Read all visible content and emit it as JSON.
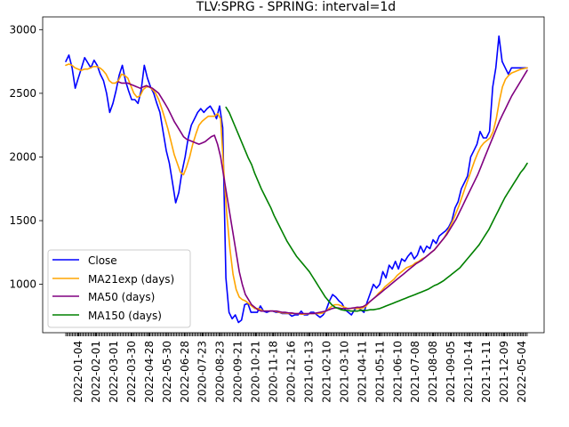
{
  "chart_data": {
    "type": "line",
    "title": "TLV:SPRG - SPRING: interval=1d",
    "xlabel": "",
    "ylabel": "",
    "ylim": [
      620,
      3100
    ],
    "yticks": [
      1000,
      1500,
      2000,
      2500,
      3000
    ],
    "grid": false,
    "legend_placement": "lower-left",
    "xticks": [
      "2022-01-04",
      "2022-02-01",
      "2022-03-01",
      "2022-03-30",
      "2022-04-28",
      "2022-05-30",
      "2022-06-28",
      "2020-07-23",
      "2020-08-23",
      "2020-09-21",
      "2020-10-21",
      "2020-11-18",
      "2020-12-16",
      "2021-01-13",
      "2021-02-10",
      "2021-03-10",
      "2021-04-11",
      "2021-05-11",
      "2021-06-10",
      "2021-07-08",
      "2021-08-08",
      "2021-09-05",
      "2021-10-14",
      "2021-11-11",
      "2021-12-09",
      "2022-05-04"
    ],
    "series": [
      {
        "name": "Close",
        "color": "#0000ff",
        "values": [
          2750,
          2800,
          2700,
          2540,
          2620,
          2700,
          2780,
          2740,
          2700,
          2760,
          2720,
          2650,
          2600,
          2500,
          2350,
          2420,
          2520,
          2640,
          2720,
          2600,
          2520,
          2450,
          2450,
          2420,
          2520,
          2720,
          2620,
          2550,
          2500,
          2420,
          2350,
          2200,
          2050,
          1950,
          1800,
          1640,
          1720,
          1880,
          2000,
          2150,
          2250,
          2300,
          2350,
          2380,
          2350,
          2380,
          2400,
          2360,
          2300,
          2400,
          2230,
          1050,
          780,
          730,
          760,
          700,
          720,
          840,
          850,
          780,
          780,
          780,
          830,
          790,
          780,
          790,
          790,
          780,
          780,
          770,
          770,
          770,
          750,
          760,
          760,
          790,
          760,
          760,
          780,
          780,
          760,
          740,
          760,
          800,
          870,
          920,
          900,
          870,
          850,
          800,
          780,
          760,
          800,
          820,
          800,
          780,
          860,
          930,
          1000,
          970,
          1000,
          1100,
          1050,
          1150,
          1120,
          1180,
          1120,
          1200,
          1180,
          1220,
          1250,
          1200,
          1230,
          1300,
          1250,
          1300,
          1280,
          1350,
          1320,
          1380,
          1400,
          1420,
          1450,
          1500,
          1600,
          1650,
          1750,
          1800,
          1850,
          2000,
          2050,
          2100,
          2200,
          2150,
          2150,
          2200,
          2550,
          2700,
          2950,
          2750,
          2700,
          2650,
          2700,
          2700,
          2700,
          2700,
          2700,
          2700
        ]
      },
      {
        "name": "MA21exp (days)",
        "color": "#ffa500",
        "values": [
          2720,
          2730,
          2720,
          2700,
          2690,
          2680,
          2690,
          2690,
          2700,
          2710,
          2710,
          2700,
          2680,
          2650,
          2600,
          2580,
          2580,
          2600,
          2650,
          2640,
          2620,
          2560,
          2500,
          2470,
          2480,
          2530,
          2550,
          2550,
          2530,
          2500,
          2450,
          2380,
          2300,
          2220,
          2120,
          2020,
          1950,
          1880,
          1860,
          1920,
          2000,
          2100,
          2180,
          2250,
          2280,
          2300,
          2320,
          2320,
          2320,
          2340,
          2300,
          1900,
          1550,
          1280,
          1080,
          960,
          900,
          880,
          870,
          850,
          830,
          810,
          810,
          800,
          790,
          790,
          790,
          790,
          785,
          780,
          775,
          775,
          770,
          770,
          770,
          770,
          765,
          765,
          768,
          770,
          770,
          770,
          770,
          775,
          790,
          810,
          830,
          840,
          840,
          830,
          820,
          810,
          810,
          812,
          810,
          810,
          815,
          830,
          860,
          880,
          900,
          930,
          950,
          980,
          1000,
          1020,
          1040,
          1070,
          1090,
          1110,
          1130,
          1140,
          1150,
          1170,
          1180,
          1200,
          1210,
          1230,
          1250,
          1270,
          1300,
          1330,
          1360,
          1400,
          1450,
          1500,
          1560,
          1620,
          1690,
          1760,
          1830,
          1900,
          1970,
          2030,
          2080,
          2110,
          2130,
          2150,
          2200,
          2300,
          2440,
          2550,
          2610,
          2640,
          2660,
          2670,
          2680,
          2690,
          2695,
          2700
        ]
      },
      {
        "name": "MA50 (days)",
        "color": "#800080",
        "values": [
          null,
          null,
          null,
          null,
          null,
          null,
          null,
          null,
          null,
          null,
          null,
          null,
          null,
          null,
          null,
          null,
          null,
          2590,
          2580,
          2580,
          2580,
          2570,
          2560,
          2550,
          2540,
          2550,
          2560,
          2550,
          2540,
          2520,
          2500,
          2460,
          2420,
          2380,
          2330,
          2280,
          2240,
          2200,
          2160,
          2140,
          2130,
          2120,
          2110,
          2100,
          2110,
          2120,
          2140,
          2160,
          2170,
          2100,
          2000,
          1850,
          1700,
          1550,
          1400,
          1250,
          1100,
          1000,
          920,
          880,
          840,
          820,
          800,
          790,
          790,
          790,
          790,
          790,
          790,
          785,
          780,
          780,
          775,
          775,
          770,
          770,
          770,
          770,
          770,
          770,
          770,
          775,
          780,
          785,
          790,
          800,
          810,
          815,
          815,
          810,
          810,
          810,
          812,
          815,
          820,
          820,
          825,
          840,
          860,
          880,
          900,
          920,
          940,
          960,
          980,
          1000,
          1020,
          1040,
          1060,
          1080,
          1100,
          1120,
          1140,
          1160,
          1175,
          1190,
          1210,
          1230,
          1250,
          1270,
          1300,
          1330,
          1360,
          1390,
          1430,
          1470,
          1510,
          1560,
          1610,
          1660,
          1710,
          1760,
          1810,
          1860,
          1920,
          1980,
          2040,
          2100,
          2160,
          2220,
          2280,
          2330,
          2380,
          2430,
          2480,
          2520,
          2560,
          2600,
          2640,
          2680
        ]
      },
      {
        "name": "MA150 (days)",
        "color": "#008000",
        "values": [
          null,
          null,
          null,
          null,
          null,
          null,
          null,
          null,
          null,
          null,
          null,
          null,
          null,
          null,
          null,
          null,
          null,
          null,
          null,
          null,
          null,
          null,
          null,
          null,
          null,
          null,
          null,
          null,
          null,
          null,
          null,
          null,
          null,
          null,
          null,
          null,
          null,
          null,
          null,
          null,
          null,
          null,
          null,
          null,
          null,
          null,
          null,
          null,
          null,
          null,
          2390,
          2350,
          2290,
          2230,
          2170,
          2110,
          2050,
          1990,
          1940,
          1870,
          1810,
          1750,
          1700,
          1650,
          1600,
          1540,
          1490,
          1440,
          1390,
          1340,
          1300,
          1260,
          1220,
          1190,
          1160,
          1130,
          1100,
          1060,
          1020,
          980,
          940,
          900,
          870,
          840,
          820,
          810,
          800,
          795,
          795,
          790,
          790,
          790,
          795,
          795,
          795,
          800,
          800,
          805,
          810,
          820,
          830,
          840,
          850,
          860,
          870,
          880,
          890,
          900,
          910,
          920,
          930,
          940,
          950,
          960,
          975,
          990,
          1000,
          1015,
          1030,
          1050,
          1070,
          1090,
          1110,
          1130,
          1160,
          1190,
          1220,
          1250,
          1280,
          1310,
          1350,
          1390,
          1430,
          1480,
          1530,
          1580,
          1630,
          1680,
          1720,
          1760,
          1800,
          1840,
          1880,
          1910,
          1950
        ]
      }
    ]
  }
}
